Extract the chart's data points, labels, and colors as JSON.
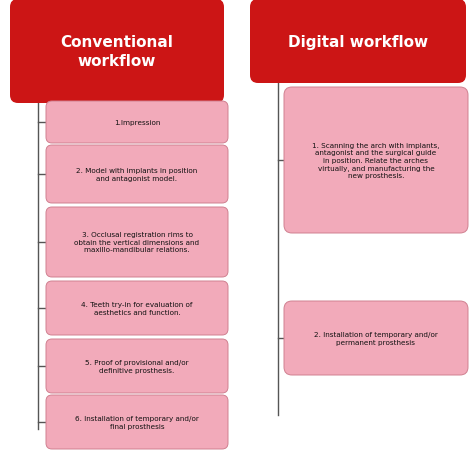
{
  "title_left": "Conventional\nworkflow",
  "title_right": "Digital workflow",
  "header_color": "#CC1515",
  "header_text_color": "#FFFFFF",
  "box_color": "#F2AABA",
  "box_edge_color": "#D08090",
  "line_color": "#555555",
  "bg_color": "#FFFFFF",
  "left_steps": [
    "1.Impression",
    "2. Model with implants in position\nand antagonist model.",
    "3. Occlusal registration rims to\nobtain the vertical dimensions and\nmaxillo-mandibular relations.",
    "4. Teeth try-in for evaluation of\naesthetics and function.",
    "5. Proof of provisional and/or\ndefinitive prosthesis.",
    "6. Installation of temporary and/or\nfinal prosthesis"
  ],
  "right_steps": [
    "1. Scanning the arch with implants,\nantagonist and the surgical guide\nin position. Relate the arches\nvirtually, and manufacturing the\nnew prosthesis.",
    "2. Installation of temporary and/or\npermanent prosthesis"
  ],
  "figw": 4.74,
  "figh": 4.56,
  "dpi": 100
}
